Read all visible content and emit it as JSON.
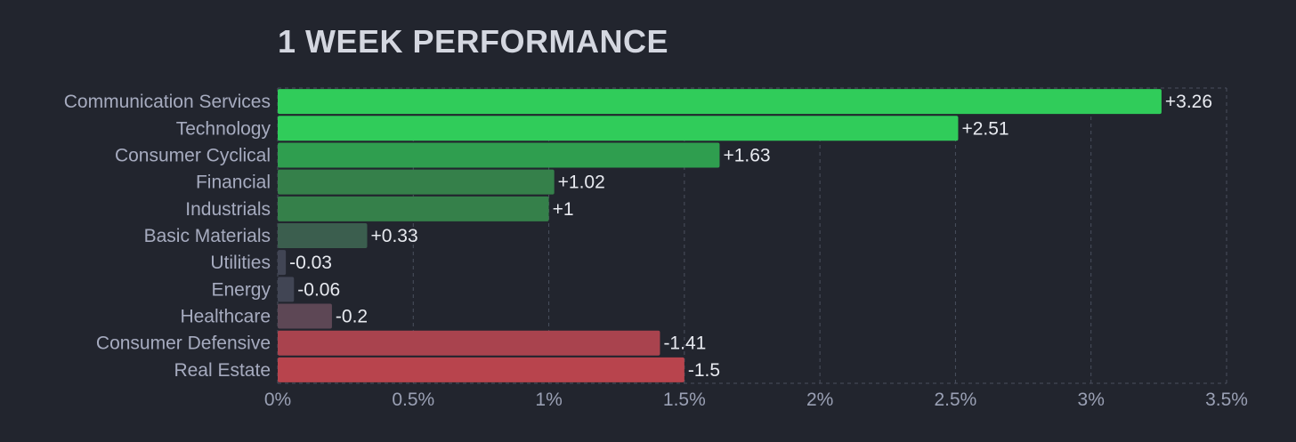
{
  "chart_data": {
    "type": "bar",
    "orientation": "horizontal",
    "title": "1 WEEK PERFORMANCE",
    "categories": [
      "Communication Services",
      "Technology",
      "Consumer Cyclical",
      "Financial",
      "Industrials",
      "Basic Materials",
      "Utilities",
      "Energy",
      "Healthcare",
      "Consumer Defensive",
      "Real Estate"
    ],
    "values": [
      3.26,
      2.51,
      1.63,
      1.02,
      1,
      0.33,
      -0.03,
      -0.06,
      -0.2,
      -1.41,
      -1.5
    ],
    "value_labels": [
      "+3.26",
      "+2.51",
      "+1.63",
      "+1.02",
      "+1",
      "+0.33",
      "-0.03",
      "-0.06",
      "-0.2",
      "-1.41",
      "-1.5"
    ],
    "bar_colors": [
      "#30cc5a",
      "#30cc5a",
      "#2f9e4f",
      "#35804a",
      "#35804a",
      "#3b5e4e",
      "#414554",
      "#414554",
      "#5d4755",
      "#a9434e",
      "#b8444d"
    ],
    "xlim": [
      0,
      3.5
    ],
    "x_ticks": [
      0,
      0.5,
      1,
      1.5,
      2,
      2.5,
      3,
      3.5
    ],
    "x_tick_labels": [
      "0%",
      "0.5%",
      "1%",
      "1.5%",
      "2%",
      "2.5%",
      "3%",
      "3.5%"
    ],
    "xlabel": "",
    "ylabel": "",
    "grid": true,
    "legend": "none",
    "colors": {
      "background": "#22252e",
      "grid": "#4a4f5e",
      "title": "#d4d7e0",
      "category_text": "#a6abbf",
      "value_text": "#e8eaf0",
      "tick_text": "#9aa0b4"
    }
  }
}
